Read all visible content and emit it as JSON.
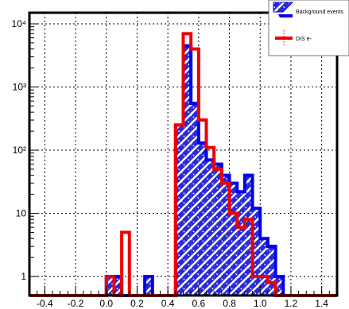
{
  "chart_data": {
    "type": "bar",
    "title": "",
    "xlabel": "",
    "ylabel": "",
    "xlim": [
      -0.5,
      1.5
    ],
    "ylim": [
      0.5,
      15000
    ],
    "y_scale": "log",
    "grid": true,
    "legend_position": "top-right",
    "bin_edges": [
      -0.5,
      -0.45,
      -0.4,
      -0.35,
      -0.3,
      -0.25,
      -0.2,
      -0.15,
      -0.1,
      -0.05,
      0.0,
      0.05,
      0.1,
      0.15,
      0.2,
      0.25,
      0.3,
      0.35,
      0.4,
      0.45,
      0.5,
      0.55,
      0.6,
      0.65,
      0.7,
      0.75,
      0.8,
      0.85,
      0.9,
      0.95,
      1.0,
      1.05,
      1.1,
      1.15,
      1.2,
      1.25,
      1.3,
      1.35,
      1.4,
      1.45,
      1.5
    ],
    "x_ticks": [
      {
        "value": -0.4,
        "label": "-0.4"
      },
      {
        "value": -0.2,
        "label": "-0.2"
      },
      {
        "value": 0.0,
        "label": "0.0"
      },
      {
        "value": 0.2,
        "label": "0.2"
      },
      {
        "value": 0.4,
        "label": "0.4"
      },
      {
        "value": 0.6,
        "label": "0.6"
      },
      {
        "value": 0.8,
        "label": "0.8"
      },
      {
        "value": 1.0,
        "label": "1.0"
      },
      {
        "value": 1.2,
        "label": "1.2"
      },
      {
        "value": 1.4,
        "label": "1.4"
      }
    ],
    "y_ticks": [
      {
        "value": 1,
        "label": "1"
      },
      {
        "value": 10,
        "label": "10"
      },
      {
        "value": 100,
        "label": "10²"
      },
      {
        "value": 1000,
        "label": "10³"
      },
      {
        "value": 10000,
        "label": "10⁴"
      }
    ],
    "series": [
      {
        "name": "Background events",
        "color": "#0000ee",
        "style": "hatched-fill",
        "values": [
          0,
          0,
          0,
          0,
          0,
          0,
          0,
          0,
          0,
          0,
          1,
          1,
          0,
          0,
          0,
          1,
          0,
          0,
          0,
          250,
          4500,
          550,
          130,
          70,
          60,
          40,
          30,
          22,
          40,
          12,
          4,
          3,
          1,
          0,
          0,
          0,
          0,
          0,
          0,
          0
        ]
      },
      {
        "name": "DIS e-",
        "color": "#ee0000",
        "style": "outline",
        "values": [
          0,
          0,
          0,
          0,
          0,
          0,
          0,
          0,
          0,
          0,
          1,
          0,
          5,
          0,
          0,
          0,
          0,
          0,
          0,
          250,
          7000,
          4000,
          300,
          110,
          50,
          30,
          10,
          6,
          8,
          1,
          1,
          0.8,
          0,
          0,
          0,
          0,
          0,
          0,
          0,
          0
        ]
      }
    ]
  }
}
